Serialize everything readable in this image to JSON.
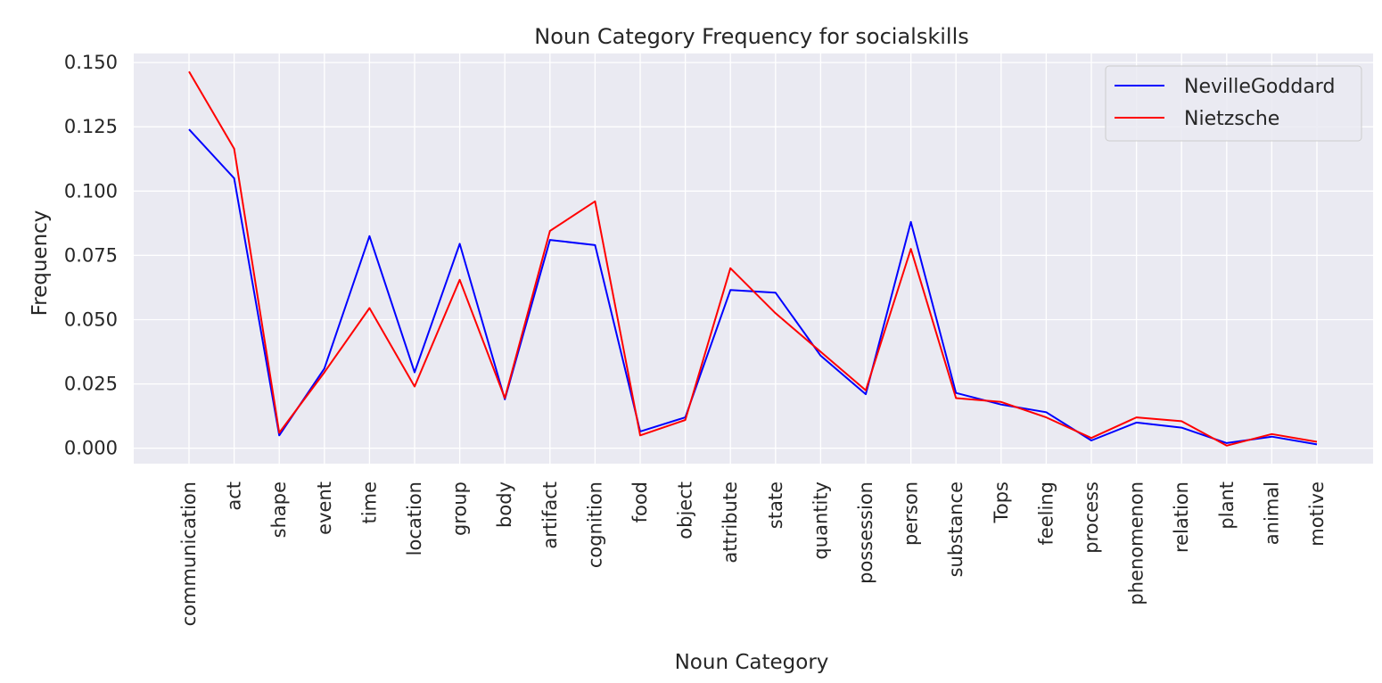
{
  "chart_data": {
    "type": "line",
    "title": "Noun Category Frequency for socialskills",
    "xlabel": "Noun Category",
    "ylabel": "Frequency",
    "categories": [
      "communication",
      "act",
      "shape",
      "event",
      "time",
      "location",
      "group",
      "body",
      "artifact",
      "cognition",
      "food",
      "object",
      "attribute",
      "state",
      "quantity",
      "possession",
      "person",
      "substance",
      "Tops",
      "feeling",
      "process",
      "phenomenon",
      "relation",
      "plant",
      "animal",
      "motive"
    ],
    "series": [
      {
        "name": "NevilleGoddard",
        "color": "#0000ff",
        "values": [
          0.124,
          0.105,
          0.005,
          0.031,
          0.0825,
          0.0295,
          0.0795,
          0.019,
          0.081,
          0.079,
          0.0065,
          0.012,
          0.0615,
          0.0605,
          0.036,
          0.021,
          0.088,
          0.0215,
          0.017,
          0.014,
          0.003,
          0.01,
          0.008,
          0.002,
          0.0045,
          0.0015
        ]
      },
      {
        "name": "Nietzsche",
        "color": "#ff0000",
        "values": [
          0.1465,
          0.1165,
          0.006,
          0.0295,
          0.0545,
          0.024,
          0.0655,
          0.0195,
          0.0845,
          0.096,
          0.005,
          0.011,
          0.07,
          0.0525,
          0.0375,
          0.0225,
          0.0775,
          0.0195,
          0.018,
          0.012,
          0.004,
          0.012,
          0.0105,
          0.001,
          0.0055,
          0.0025
        ]
      }
    ],
    "ylim": [
      -0.006,
      0.1535
    ],
    "yticks": [
      "0.000",
      "0.025",
      "0.050",
      "0.075",
      "0.100",
      "0.125",
      "0.150"
    ],
    "grid": true,
    "legend_position": "top-right",
    "colors": {
      "plot_background": "#eaeaf2",
      "grid": "#ffffff",
      "text": "#262626"
    }
  }
}
